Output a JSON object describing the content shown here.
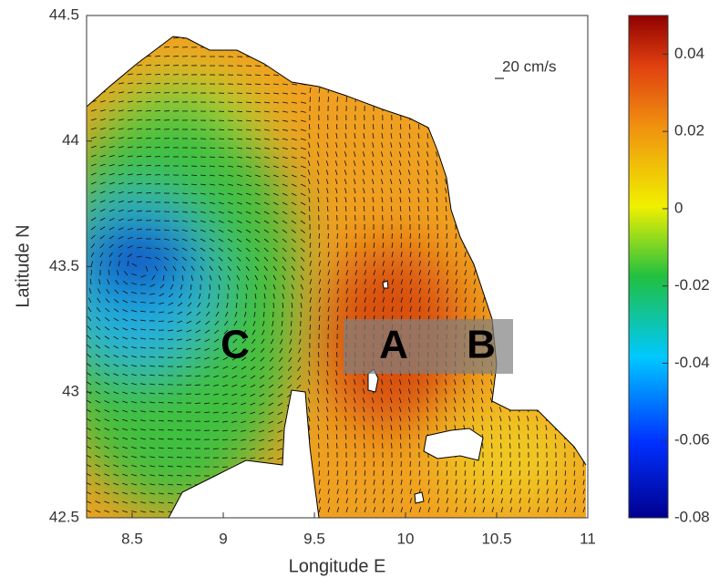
{
  "chart_data": {
    "type": "map",
    "x_label": "Longitude E",
    "y_label": "Latitude N",
    "xlim": [
      8.25,
      11
    ],
    "ylim": [
      42.5,
      44.5
    ],
    "xticks": [
      8.5,
      9,
      9.5,
      10,
      10.5,
      11
    ],
    "yticks": [
      42.5,
      43,
      43.5,
      44,
      44.5
    ],
    "colorbar": {
      "lim": [
        -0.08,
        0.05
      ],
      "ticks": [
        -0.08,
        -0.06,
        -0.04,
        -0.02,
        0,
        0.02,
        0.04
      ]
    },
    "scale_label": "20 cm/s",
    "annotations": [
      "A",
      "B",
      "C"
    ]
  }
}
